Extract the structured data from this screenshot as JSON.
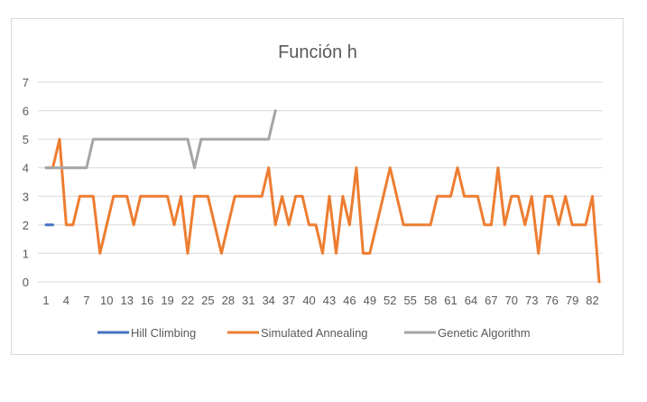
{
  "chart_data": {
    "type": "line",
    "title": "Función h",
    "xlabel": "",
    "ylabel": "",
    "ylim": [
      0,
      7
    ],
    "y_ticks": [
      0,
      1,
      2,
      3,
      4,
      5,
      6,
      7
    ],
    "x_range": [
      1,
      83
    ],
    "x_tick_labels": [
      "1",
      "4",
      "7",
      "10",
      "13",
      "16",
      "19",
      "22",
      "25",
      "28",
      "31",
      "34",
      "37",
      "40",
      "43",
      "46",
      "49",
      "52",
      "55",
      "58",
      "61",
      "64",
      "67",
      "70",
      "73",
      "76",
      "79",
      "82"
    ],
    "grid": "horizontal",
    "legend_position": "bottom",
    "series": [
      {
        "name": "Hill Climbing",
        "color": "#4472C4",
        "x": [
          1,
          2
        ],
        "y": [
          2,
          2
        ]
      },
      {
        "name": "Simulated Annealing",
        "color": "#ED7D31",
        "x": [
          1,
          2,
          3,
          4,
          5,
          6,
          7,
          8,
          9,
          10,
          11,
          12,
          13,
          14,
          15,
          16,
          17,
          18,
          19,
          20,
          21,
          22,
          23,
          24,
          25,
          26,
          27,
          28,
          29,
          30,
          31,
          32,
          33,
          34,
          35,
          36,
          37,
          38,
          39,
          40,
          41,
          42,
          43,
          44,
          45,
          46,
          47,
          48,
          49,
          50,
          51,
          52,
          53,
          54,
          55,
          56,
          57,
          58,
          59,
          60,
          61,
          62,
          63,
          64,
          65,
          66,
          67,
          68,
          69,
          70,
          71,
          72,
          73,
          74,
          75,
          76,
          77,
          78,
          79,
          80,
          81,
          82,
          83
        ],
        "y": [
          4,
          4,
          5,
          2,
          2,
          3,
          3,
          3,
          1,
          2,
          3,
          3,
          3,
          2,
          3,
          3,
          3,
          3,
          3,
          2,
          3,
          1,
          3,
          3,
          3,
          2,
          1,
          2,
          3,
          3,
          3,
          3,
          3,
          4,
          2,
          3,
          2,
          3,
          3,
          2,
          2,
          1,
          3,
          1,
          3,
          2,
          4,
          1,
          1,
          2,
          3,
          4,
          3,
          2,
          2,
          2,
          2,
          2,
          3,
          3,
          3,
          4,
          3,
          3,
          3,
          2,
          2,
          4,
          2,
          3,
          3,
          2,
          3,
          1,
          3,
          3,
          2,
          3,
          2,
          2,
          2,
          3,
          0
        ]
      },
      {
        "name": "Genetic Algorithm",
        "color": "#A5A5A5",
        "x": [
          1,
          2,
          3,
          4,
          5,
          6,
          7,
          8,
          9,
          10,
          11,
          12,
          13,
          14,
          15,
          16,
          17,
          18,
          19,
          20,
          21,
          22,
          23,
          24,
          25,
          26,
          27,
          28,
          29,
          30,
          31,
          32,
          33,
          34,
          35
        ],
        "y": [
          4,
          4,
          4,
          4,
          4,
          4,
          4,
          5,
          5,
          5,
          5,
          5,
          5,
          5,
          5,
          5,
          5,
          5,
          5,
          5,
          5,
          5,
          4,
          5,
          5,
          5,
          5,
          5,
          5,
          5,
          5,
          5,
          5,
          5,
          6
        ]
      }
    ]
  }
}
